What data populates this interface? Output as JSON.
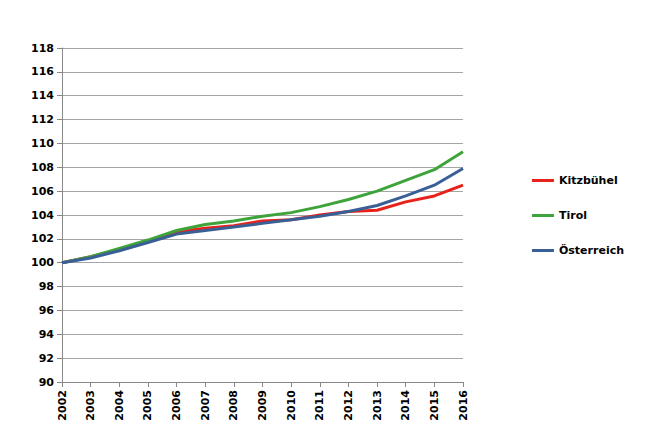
{
  "chart_data": {
    "type": "line",
    "categories": [
      "2002",
      "2003",
      "2004",
      "2005",
      "2006",
      "2007",
      "2008",
      "2009",
      "2010",
      "2011",
      "2012",
      "2013",
      "2014",
      "2015",
      "2016"
    ],
    "series": [
      {
        "name": "Kitzbühel",
        "color": "#e8221b",
        "values": [
          100,
          100.5,
          101.1,
          101.8,
          102.6,
          102.9,
          103.1,
          103.5,
          103.6,
          104.0,
          104.3,
          104.4,
          105.1,
          105.6,
          106.5
        ]
      },
      {
        "name": "Tirol",
        "color": "#3ea33a",
        "values": [
          100,
          100.5,
          101.2,
          101.9,
          102.7,
          103.2,
          103.5,
          103.9,
          104.2,
          104.7,
          105.3,
          106.0,
          106.9,
          107.8,
          109.3
        ]
      },
      {
        "name": "Österreich",
        "color": "#3a5f96",
        "values": [
          100,
          100.4,
          101.0,
          101.7,
          102.4,
          102.7,
          103.0,
          103.3,
          103.6,
          103.9,
          104.3,
          104.8,
          105.6,
          106.5,
          107.9
        ]
      }
    ],
    "ylim": [
      90,
      118
    ],
    "yticks": [
      90,
      92,
      94,
      96,
      98,
      100,
      102,
      104,
      106,
      108,
      110,
      112,
      114,
      116,
      118
    ],
    "grid": true,
    "legend": "right"
  }
}
